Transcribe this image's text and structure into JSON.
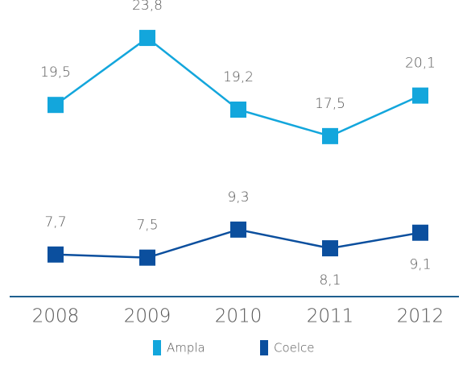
{
  "chart_data": {
    "type": "line",
    "categories": [
      "2008",
      "2009",
      "2010",
      "2011",
      "2012"
    ],
    "ylim": [
      7.2,
      25.2
    ],
    "y2lim": [
      5,
      23
    ],
    "series": [
      {
        "name": "Ampla",
        "color": "#13a6dc",
        "values": [
          19.5,
          23.8,
          19.2,
          17.5,
          20.1
        ],
        "value_labels": [
          "19,5",
          "23,8",
          "19,2",
          "17,5",
          "20,1"
        ]
      },
      {
        "name": "Coelce",
        "color": "#0b4f9e",
        "axis": "y2",
        "values": [
          7.7,
          7.5,
          9.3,
          8.1,
          9.1
        ],
        "value_labels": [
          "7,7",
          "7,5",
          "9,3",
          "8,1",
          "9,1"
        ]
      }
    ]
  }
}
